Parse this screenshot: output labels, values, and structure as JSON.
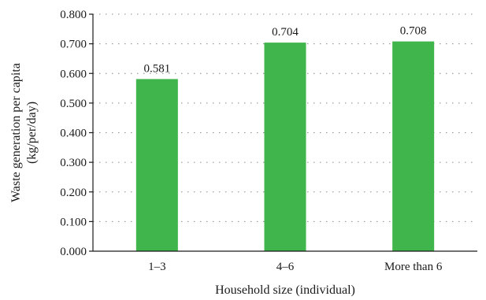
{
  "chart_data": {
    "type": "bar",
    "categories": [
      "1–3",
      "4–6",
      "More than 6"
    ],
    "values": [
      0.581,
      0.704,
      0.708
    ],
    "data_labels": [
      "0.581",
      "0.704",
      "0.708"
    ],
    "title": "",
    "xlabel": "Household size (individual)",
    "ylabel": "Waste generation per capita",
    "ylabel_unit": "(kg/per/day)",
    "ylim": [
      0,
      0.8
    ],
    "yticks": [
      0,
      0.1,
      0.2,
      0.3,
      0.4,
      0.5,
      0.6,
      0.7,
      0.8
    ],
    "ytick_labels": [
      "0.000",
      "0.100",
      "0.200",
      "0.300",
      "0.400",
      "0.500",
      "0.600",
      "0.700",
      "0.800"
    ],
    "grid": true,
    "legend": "none",
    "bar_color": "#3fb54b"
  }
}
